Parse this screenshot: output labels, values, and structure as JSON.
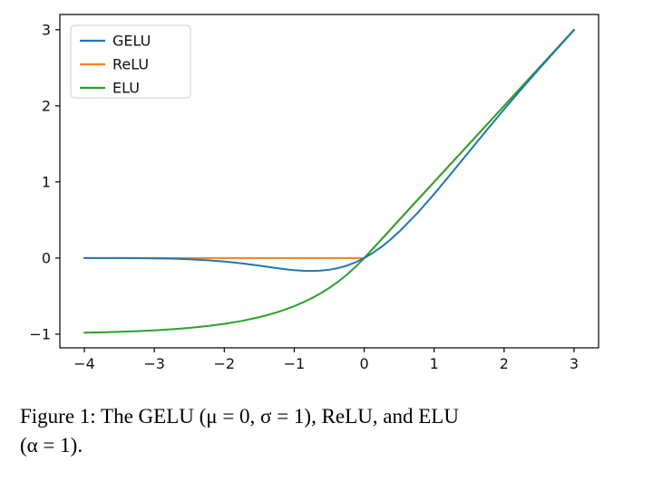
{
  "figure": {
    "caption_line1": "Figure 1: The GELU (μ = 0, σ = 1), ReLU, and ELU",
    "caption_line2": "(α = 1)."
  },
  "chart_data": {
    "type": "line",
    "title": "",
    "xlabel": "",
    "ylabel": "",
    "grid": false,
    "legend_position": "upper-left",
    "xlim": [
      -4.35,
      3.35
    ],
    "ylim": [
      -1.18,
      3.2
    ],
    "xtick_values": [
      -4,
      -3,
      -2,
      -1,
      0,
      1,
      2,
      3
    ],
    "xtick_labels": [
      "−4",
      "−3",
      "−2",
      "−1",
      "0",
      "1",
      "2",
      "3"
    ],
    "ytick_values": [
      -1,
      0,
      1,
      2,
      3
    ],
    "ytick_labels": [
      "−1",
      "0",
      "1",
      "2",
      "3"
    ],
    "x": [
      -4,
      -3.75,
      -3.5,
      -3.25,
      -3,
      -2.75,
      -2.5,
      -2.25,
      -2,
      -1.75,
      -1.5,
      -1.375,
      -1.25,
      -1.125,
      -1,
      -0.875,
      -0.75,
      -0.625,
      -0.5,
      -0.375,
      -0.25,
      -0.125,
      0,
      0.125,
      0.25,
      0.375,
      0.5,
      0.75,
      1,
      1.25,
      1.5,
      1.75,
      2,
      2.25,
      2.5,
      2.75,
      3
    ],
    "series": [
      {
        "name": "GELU",
        "color": "#1f77b4",
        "values": [
          -0.0001,
          -0.0003,
          -0.0008,
          -0.0019,
          -0.004,
          -0.0082,
          -0.0155,
          -0.0275,
          -0.0455,
          -0.0701,
          -0.1002,
          -0.1163,
          -0.1321,
          -0.1466,
          -0.1587,
          -0.167,
          -0.17,
          -0.1662,
          -0.1543,
          -0.1327,
          -0.1003,
          -0.0563,
          0,
          0.0687,
          0.1497,
          0.2423,
          0.3457,
          0.58,
          0.8413,
          1.1179,
          1.3998,
          1.6799,
          1.9545,
          2.2225,
          2.4845,
          2.7418,
          2.996
        ]
      },
      {
        "name": "ReLU",
        "color": "#ff7f0e",
        "values": [
          0,
          0,
          0,
          0,
          0,
          0,
          0,
          0,
          0,
          0,
          0,
          0,
          0,
          0,
          0,
          0,
          0,
          0,
          0,
          0,
          0,
          0,
          0,
          0.125,
          0.25,
          0.375,
          0.5,
          0.75,
          1,
          1.25,
          1.5,
          1.75,
          2,
          2.25,
          2.5,
          2.75,
          3
        ]
      },
      {
        "name": "ELU",
        "color": "#2ca02c",
        "values": [
          -0.9817,
          -0.9765,
          -0.9698,
          -0.9612,
          -0.9502,
          -0.9361,
          -0.9179,
          -0.8946,
          -0.8647,
          -0.8262,
          -0.7769,
          -0.7472,
          -0.7135,
          -0.6753,
          -0.6321,
          -0.5831,
          -0.5276,
          -0.4647,
          -0.3935,
          -0.3127,
          -0.2212,
          -0.1175,
          0,
          0.125,
          0.25,
          0.375,
          0.5,
          0.75,
          1,
          1.25,
          1.5,
          1.75,
          2,
          2.25,
          2.5,
          2.75,
          3
        ]
      }
    ],
    "draw_order": [
      "ReLU",
      "ELU",
      "GELU"
    ]
  }
}
